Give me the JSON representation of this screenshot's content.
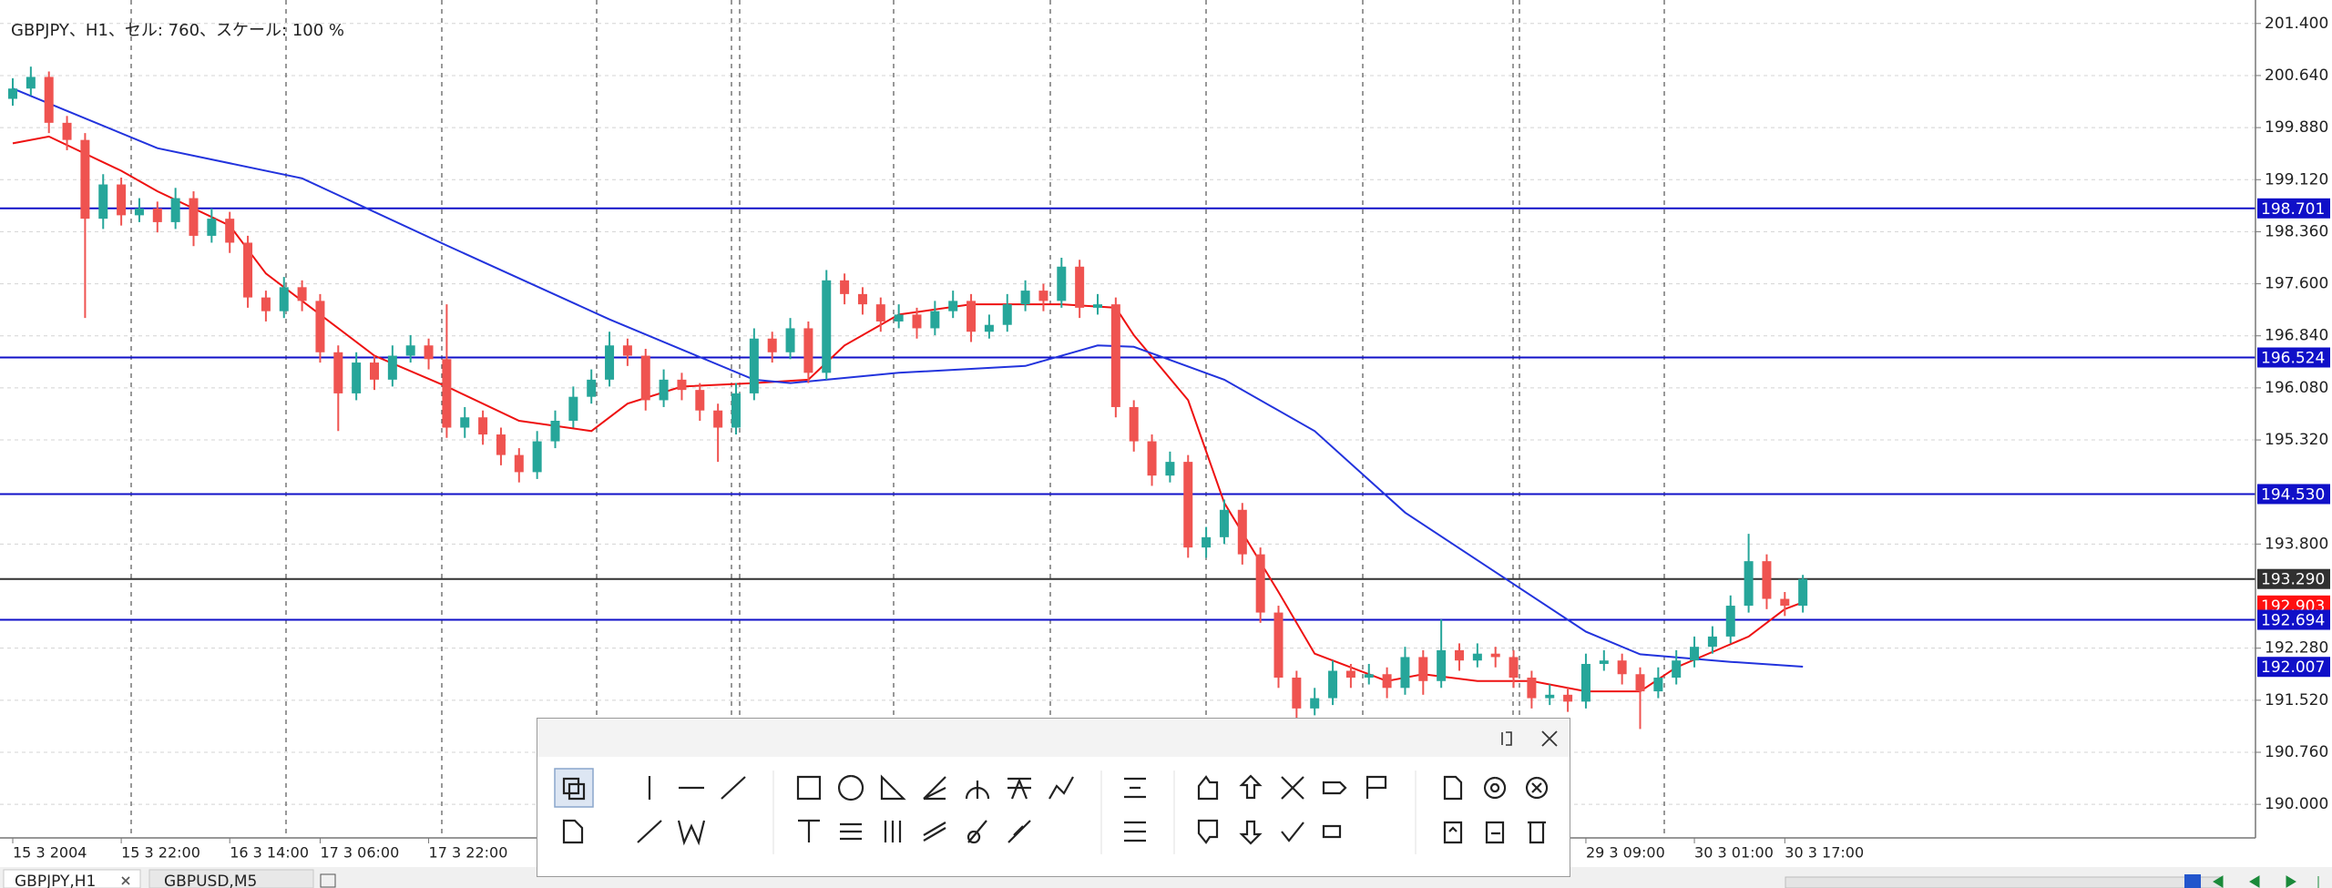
{
  "chart_data": {
    "type": "candlestick",
    "title": "GBPJPY、H1、セル: 760、スケール: 100 %",
    "ylim": [
      189.51,
      201.61
    ],
    "yticks": [
      {
        "value": 201.4,
        "label": "201.400"
      },
      {
        "value": 200.64,
        "label": "200.640"
      },
      {
        "value": 199.88,
        "label": "199.880"
      },
      {
        "value": 199.12,
        "label": "199.120"
      },
      {
        "value": 198.36,
        "label": "198.360"
      },
      {
        "value": 197.6,
        "label": "197.600"
      },
      {
        "value": 196.84,
        "label": "196.840"
      },
      {
        "value": 196.08,
        "label": "196.080"
      },
      {
        "value": 195.32,
        "label": "195.320"
      },
      {
        "value": 193.8,
        "label": "193.800"
      },
      {
        "value": 192.28,
        "label": "192.280"
      },
      {
        "value": 191.52,
        "label": "191.520"
      },
      {
        "value": 190.76,
        "label": "190.760"
      },
      {
        "value": 190.0,
        "label": "190.000"
      }
    ],
    "grid": true,
    "up_color": "#26a69a",
    "down_color": "#ef5350",
    "categories": [
      "15 3 2004",
      null,
      null,
      null,
      null,
      null,
      "15 3 22:00",
      null,
      null,
      null,
      null,
      null,
      "16 3 14:00",
      null,
      null,
      null,
      null,
      "17 3 06:00",
      null,
      null,
      null,
      null,
      null,
      "17 3 22:00",
      null,
      null,
      null,
      null,
      null,
      null,
      null,
      null,
      null,
      null,
      null,
      null,
      null,
      null,
      null,
      null,
      null,
      null,
      null,
      null,
      null,
      null,
      null,
      null,
      null,
      null,
      null,
      null,
      null,
      null,
      null,
      null,
      null,
      null,
      null,
      null,
      null,
      null,
      null,
      null,
      null,
      null,
      null,
      null,
      null,
      null,
      null,
      null,
      null,
      null,
      null,
      null,
      null,
      null,
      null,
      null,
      null,
      null,
      null,
      null,
      null,
      null,
      null,
      "29 3 09:00",
      null,
      null,
      null,
      null,
      null,
      "30 3 01:00",
      null,
      null,
      null,
      null,
      "30 3 17:00",
      null
    ],
    "ohlc": {
      "open": [
        200.3,
        200.45,
        200.62,
        199.95,
        199.7,
        198.55,
        199.05,
        198.6,
        198.7,
        198.5,
        198.85,
        198.3,
        198.55,
        198.2,
        197.4,
        197.2,
        197.55,
        197.35,
        196.6,
        196.0,
        196.45,
        196.2,
        196.55,
        196.7,
        196.5,
        195.5,
        195.65,
        195.4,
        195.1,
        194.85,
        195.3,
        195.6,
        195.95,
        196.2,
        196.7,
        196.55,
        195.9,
        196.2,
        196.05,
        195.75,
        195.5,
        196.0,
        196.8,
        196.6,
        196.95,
        196.3,
        197.65,
        197.45,
        197.3,
        197.05,
        197.15,
        196.95,
        197.2,
        197.35,
        196.9,
        197.0,
        197.3,
        197.5,
        197.35,
        197.85,
        197.25,
        197.3,
        195.8,
        195.3,
        194.8,
        195.0,
        193.75,
        193.9,
        194.3,
        193.65,
        192.8,
        191.85,
        191.4,
        191.55,
        191.95,
        191.85,
        191.9,
        191.7,
        192.15,
        191.8,
        192.25,
        192.1,
        192.2,
        192.15,
        191.85,
        191.55,
        191.6,
        191.5,
        192.05,
        192.1,
        191.9,
        191.65,
        191.85,
        192.1,
        192.3,
        192.45,
        192.9,
        193.55,
        193.0,
        192.9
      ],
      "high": [
        200.6,
        200.77,
        200.7,
        200.05,
        199.8,
        199.2,
        199.15,
        198.85,
        198.8,
        199.0,
        198.95,
        198.7,
        198.65,
        198.3,
        197.5,
        197.7,
        197.65,
        197.45,
        196.7,
        196.6,
        196.55,
        196.7,
        196.85,
        196.8,
        197.3,
        195.8,
        195.75,
        195.5,
        195.2,
        195.45,
        195.75,
        196.1,
        196.35,
        196.9,
        196.8,
        196.65,
        196.35,
        196.3,
        196.15,
        195.85,
        196.15,
        196.95,
        196.9,
        197.1,
        197.05,
        197.8,
        197.75,
        197.55,
        197.4,
        197.3,
        197.25,
        197.35,
        197.5,
        197.45,
        197.15,
        197.45,
        197.65,
        197.6,
        197.98,
        197.95,
        197.45,
        197.4,
        195.9,
        195.4,
        195.15,
        195.1,
        194.05,
        194.45,
        194.4,
        193.75,
        192.9,
        191.95,
        191.7,
        192.1,
        192.05,
        192.05,
        192.0,
        192.3,
        192.25,
        192.7,
        192.35,
        192.35,
        192.3,
        192.25,
        191.95,
        191.75,
        191.7,
        192.2,
        192.25,
        192.2,
        192.0,
        192.0,
        192.25,
        192.45,
        192.6,
        193.05,
        193.95,
        193.65,
        193.1,
        193.35
      ],
      "low": [
        200.2,
        200.35,
        199.8,
        199.55,
        197.1,
        198.4,
        198.45,
        198.5,
        198.35,
        198.4,
        198.15,
        198.2,
        198.05,
        197.25,
        197.05,
        197.1,
        197.2,
        196.45,
        195.45,
        195.9,
        196.05,
        196.1,
        196.45,
        196.35,
        195.35,
        195.35,
        195.25,
        194.95,
        194.7,
        194.75,
        195.2,
        195.5,
        195.85,
        196.1,
        196.4,
        195.75,
        195.8,
        195.9,
        195.6,
        195.0,
        195.4,
        195.9,
        196.45,
        196.5,
        196.15,
        196.2,
        197.3,
        197.15,
        196.9,
        196.95,
        196.8,
        196.85,
        197.1,
        196.75,
        196.8,
        196.9,
        197.2,
        197.2,
        197.25,
        197.1,
        197.15,
        195.65,
        195.15,
        194.65,
        194.7,
        193.6,
        193.6,
        193.8,
        193.5,
        192.65,
        191.7,
        191.25,
        191.3,
        191.45,
        191.7,
        191.75,
        191.55,
        191.6,
        191.6,
        191.7,
        191.95,
        192.0,
        192.0,
        191.7,
        191.4,
        191.45,
        191.35,
        191.4,
        191.95,
        191.75,
        191.1,
        191.55,
        191.75,
        192.0,
        192.2,
        192.35,
        192.8,
        192.85,
        192.75,
        192.8
      ],
      "close": [
        200.45,
        200.62,
        199.95,
        199.7,
        198.55,
        199.05,
        198.6,
        198.7,
        198.5,
        198.85,
        198.3,
        198.55,
        198.2,
        197.4,
        197.2,
        197.55,
        197.35,
        196.6,
        196.0,
        196.45,
        196.2,
        196.55,
        196.7,
        196.5,
        195.5,
        195.65,
        195.4,
        195.1,
        194.85,
        195.3,
        195.6,
        195.95,
        196.2,
        196.7,
        196.55,
        195.9,
        196.2,
        196.05,
        195.75,
        195.5,
        196.0,
        196.8,
        196.6,
        196.95,
        196.3,
        197.65,
        197.45,
        197.3,
        197.05,
        197.15,
        196.95,
        197.2,
        197.35,
        196.9,
        197.0,
        197.3,
        197.5,
        197.35,
        197.85,
        197.25,
        197.3,
        195.8,
        195.3,
        194.8,
        195.0,
        193.75,
        193.9,
        194.3,
        193.65,
        192.8,
        191.85,
        191.4,
        191.55,
        191.95,
        191.85,
        191.9,
        191.7,
        192.15,
        191.8,
        192.25,
        192.1,
        192.2,
        192.15,
        191.85,
        191.55,
        191.6,
        191.5,
        192.05,
        192.1,
        191.9,
        191.65,
        191.85,
        192.1,
        192.3,
        192.45,
        192.9,
        193.55,
        193.0,
        192.9,
        193.29
      ]
    },
    "lines": [
      {
        "color": "#ee1111",
        "x": [
          0,
          2,
          6,
          8,
          12,
          14,
          17,
          20,
          24,
          28,
          32,
          34,
          37,
          41,
          44,
          46,
          49,
          53,
          58,
          61,
          62,
          65,
          67,
          70,
          72,
          76,
          78,
          81,
          84,
          87,
          90,
          92,
          96,
          98,
          99
        ],
        "values": [
          199.65,
          199.75,
          199.25,
          198.95,
          198.45,
          197.75,
          197.15,
          196.55,
          196.1,
          195.6,
          195.45,
          195.85,
          196.1,
          196.15,
          196.2,
          196.7,
          197.15,
          197.3,
          197.3,
          197.25,
          196.85,
          195.9,
          194.4,
          193.1,
          192.2,
          191.8,
          191.9,
          191.8,
          191.8,
          191.65,
          191.65,
          192.0,
          192.45,
          192.85,
          192.95
        ]
      },
      {
        "color": "#2233dd",
        "x": [
          0,
          8,
          16,
          24,
          33,
          37,
          41,
          43,
          49,
          56,
          60,
          62,
          67,
          72,
          77,
          82,
          87,
          90,
          95,
          99
        ],
        "values": [
          200.45,
          199.58,
          199.14,
          198.16,
          197.08,
          196.64,
          196.2,
          196.15,
          196.3,
          196.4,
          196.7,
          196.68,
          196.2,
          195.45,
          194.26,
          193.39,
          192.52,
          192.19,
          192.08,
          192.01
        ]
      }
    ],
    "price_labels": [
      {
        "value": 198.701,
        "label": "198.701",
        "color": "#1010c8",
        "line": true
      },
      {
        "value": 196.524,
        "label": "196.524",
        "color": "#1010c8",
        "line": true
      },
      {
        "value": 194.53,
        "label": "194.530",
        "color": "#1010c8",
        "line": true
      },
      {
        "value": 193.29,
        "label": "193.290",
        "color": "#303030",
        "line": true
      },
      {
        "value": 192.903,
        "label": "192.903",
        "color": "#ff1010",
        "line": false
      },
      {
        "value": 192.694,
        "label": "192.694",
        "color": "#1010c8",
        "line": true
      },
      {
        "value": 192.007,
        "label": "192.007",
        "color": "#1010c8",
        "line": false
      }
    ]
  },
  "tabs": [
    "GBPJPY,H1",
    "GBPUSD,M5"
  ]
}
